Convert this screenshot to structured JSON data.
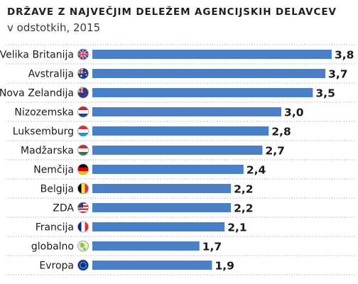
{
  "header": {
    "title": "DRŽAVE Z NAJVEČJIM DELEŽEM AGENCIJSKIH DELAVCEV",
    "subtitle": "v odstotkih, 2015"
  },
  "chart_data": {
    "type": "bar",
    "orientation": "horizontal",
    "title": "DRŽAVE Z NAJVEČJIM DELEŽEM AGENCIJSKIH DELAVCEV",
    "subtitle": "v odstotkih, 2015",
    "categories": [
      "Velika Britanija",
      "Avstralija",
      "Nova Zelandija",
      "Nizozemska",
      "Luksemburg",
      "Madžarska",
      "Nemčija",
      "Belgija",
      "ZDA",
      "Francija",
      "globalno",
      "Evropa"
    ],
    "values": [
      3.8,
      3.7,
      3.5,
      3.0,
      2.8,
      2.7,
      2.4,
      2.2,
      2.2,
      2.1,
      1.7,
      1.9
    ],
    "value_labels": [
      "3,8",
      "3,7",
      "3,5",
      "3,0",
      "2,8",
      "2,7",
      "2,4",
      "2,2",
      "2,2",
      "2,1",
      "1,7",
      "1,9"
    ],
    "icons": [
      "flag-uk-icon",
      "flag-australia-icon",
      "flag-new-zealand-icon",
      "flag-netherlands-icon",
      "flag-luxembourg-icon",
      "flag-hungary-icon",
      "flag-germany-icon",
      "flag-belgium-icon",
      "flag-usa-icon",
      "flag-france-icon",
      "globe-icon",
      "flag-eu-icon"
    ],
    "bar_color": "#4a7fc9",
    "grid": false,
    "xlim": [
      0,
      3.8
    ]
  }
}
